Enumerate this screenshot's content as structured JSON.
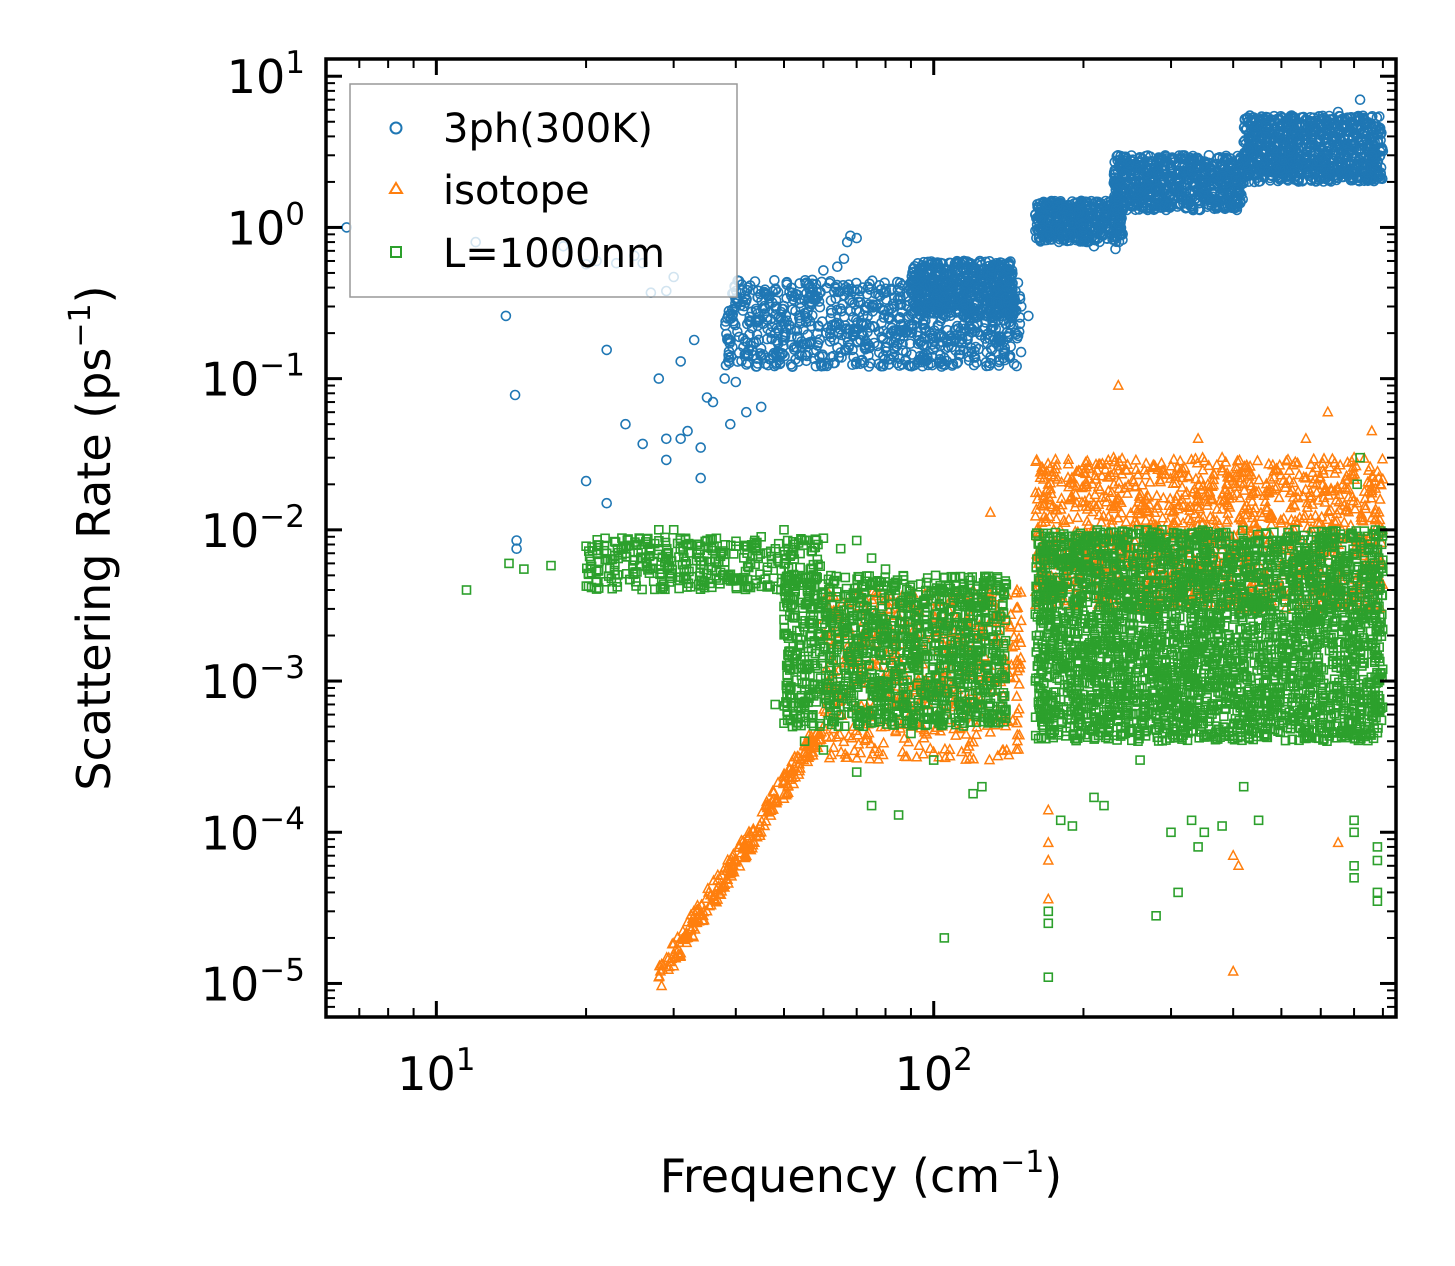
{
  "chart_data": {
    "type": "scatter",
    "xscale": "log",
    "yscale": "log",
    "xlim": [
      6.0,
      850
    ],
    "ylim": [
      6e-06,
      13
    ],
    "xlabel": {
      "base": "Frequency (cm",
      "sup": "−1",
      "close": ")"
    },
    "ylabel": {
      "base": "Scattering Rate (ps",
      "sup": "−1",
      "close": ")"
    },
    "x_ticks": [
      {
        "value": 10,
        "base": "10",
        "exp": "1"
      },
      {
        "value": 100,
        "base": "10",
        "exp": "2"
      }
    ],
    "y_ticks": [
      {
        "value": 10,
        "base": "10",
        "exp": "1"
      },
      {
        "value": 1,
        "base": "10",
        "exp": "0"
      },
      {
        "value": 0.1,
        "base": "10",
        "exp": "−1"
      },
      {
        "value": 0.01,
        "base": "10",
        "exp": "−2"
      },
      {
        "value": 0.001,
        "base": "10",
        "exp": "−3"
      },
      {
        "value": 0.0001,
        "base": "10",
        "exp": "−4"
      },
      {
        "value": 1e-05,
        "base": "10",
        "exp": "−5"
      }
    ],
    "legend_position": "top-left",
    "series": [
      {
        "name": "3ph(300K)",
        "marker": "circle",
        "color": "#1f77b4",
        "points": [
          [
            6.6,
            1.0
          ],
          [
            12,
            0.8
          ],
          [
            13.8,
            0.26
          ],
          [
            14.4,
            0.078
          ],
          [
            14.5,
            0.0085
          ],
          [
            14.5,
            0.0075
          ],
          [
            18,
            0.75
          ],
          [
            20,
            0.57
          ],
          [
            20,
            0.021
          ],
          [
            21,
            0.6
          ],
          [
            22,
            0.015
          ],
          [
            22,
            0.155
          ],
          [
            23,
            0.58
          ],
          [
            24,
            0.05
          ],
          [
            25,
            0.65
          ],
          [
            26,
            0.58
          ],
          [
            26,
            0.037
          ],
          [
            27,
            0.37
          ],
          [
            28,
            0.1
          ],
          [
            29,
            0.38
          ],
          [
            29,
            0.04
          ],
          [
            29,
            0.029
          ],
          [
            30,
            0.47
          ],
          [
            31,
            0.13
          ],
          [
            31,
            0.04
          ],
          [
            32,
            0.045
          ],
          [
            33,
            0.18
          ],
          [
            34,
            0.035
          ],
          [
            34,
            0.022
          ],
          [
            35,
            0.075
          ],
          [
            36,
            0.07
          ],
          [
            38,
            0.1
          ],
          [
            39,
            0.05
          ],
          [
            40,
            0.095
          ],
          [
            42,
            0.33
          ],
          [
            42,
            0.06
          ],
          [
            45,
            0.065
          ],
          [
            48,
            0.2
          ],
          [
            52,
            0.12
          ],
          [
            55,
            0.33
          ],
          [
            57,
            0.45
          ],
          [
            60,
            0.52
          ],
          [
            62,
            0.25
          ],
          [
            64,
            0.55
          ],
          [
            66,
            0.62
          ],
          [
            67,
            0.8
          ],
          [
            68,
            0.88
          ],
          [
            70,
            0.85
          ],
          [
            72,
            0.4
          ],
          [
            75,
            0.3
          ],
          [
            78,
            0.35
          ],
          [
            80,
            0.16
          ],
          [
            82,
            0.2
          ],
          [
            85,
            0.25
          ],
          [
            88,
            0.35
          ],
          [
            92,
            0.45
          ],
          [
            95,
            0.3
          ],
          [
            100,
            0.4
          ],
          [
            105,
            0.5
          ],
          [
            110,
            0.55
          ],
          [
            115,
            0.6
          ],
          [
            120,
            0.5
          ],
          [
            125,
            0.45
          ],
          [
            135,
            0.4
          ],
          [
            140,
            0.27
          ],
          [
            145,
            0.32
          ],
          [
            150,
            0.3
          ],
          [
            155,
            0.26
          ],
          [
            165,
            1.0
          ],
          [
            170,
            1.1
          ],
          [
            180,
            1.2
          ],
          [
            190,
            1.05
          ],
          [
            200,
            1.0
          ],
          [
            210,
            0.75
          ],
          [
            220,
            1.2
          ],
          [
            232,
            0.72
          ],
          [
            240,
            1.3
          ],
          [
            250,
            1.7
          ],
          [
            260,
            2.0
          ],
          [
            270,
            1.6
          ],
          [
            280,
            1.8
          ],
          [
            300,
            2.1
          ],
          [
            320,
            1.9
          ],
          [
            340,
            2.5
          ],
          [
            360,
            2.4
          ],
          [
            380,
            2.2
          ],
          [
            420,
            2.8
          ],
          [
            430,
            2.2
          ],
          [
            460,
            3.3
          ],
          [
            500,
            3.1
          ],
          [
            540,
            3.6
          ],
          [
            600,
            4.2
          ],
          [
            650,
            5.8
          ],
          [
            680,
            3.5
          ],
          [
            720,
            7.0
          ],
          [
            760,
            3.5
          ],
          [
            800,
            3.2
          ]
        ],
        "bands": [
          {
            "x0": 38,
            "x1": 150,
            "ylo": 0.12,
            "yhi": 0.45,
            "n": 900
          },
          {
            "x0": 90,
            "x1": 145,
            "ylo": 0.25,
            "yhi": 0.6,
            "n": 500
          },
          {
            "x0": 160,
            "x1": 240,
            "ylo": 0.8,
            "yhi": 1.5,
            "n": 450
          },
          {
            "x0": 230,
            "x1": 420,
            "ylo": 1.3,
            "yhi": 3.0,
            "n": 700
          },
          {
            "x0": 420,
            "x1": 800,
            "ylo": 2.0,
            "yhi": 5.5,
            "n": 900
          }
        ]
      },
      {
        "name": "isotope",
        "marker": "triangle",
        "color": "#ff7f0e",
        "points": [
          [
            28,
            1.1e-05
          ],
          [
            30,
            1.3e-05
          ],
          [
            32,
            2e-05
          ],
          [
            35,
            3e-05
          ],
          [
            38,
            4.5e-05
          ],
          [
            42,
            7e-05
          ],
          [
            45,
            0.0001
          ],
          [
            48,
            0.00016
          ],
          [
            52,
            0.00025
          ],
          [
            55,
            0.00038
          ],
          [
            60,
            0.0005
          ],
          [
            70,
            0.0012
          ],
          [
            90,
            0.0005
          ],
          [
            100,
            0.0008
          ],
          [
            120,
            0.004
          ],
          [
            130,
            0.013
          ],
          [
            170,
            0.00014
          ],
          [
            170,
            8.5e-05
          ],
          [
            170,
            6.5e-05
          ],
          [
            170,
            3.6e-05
          ],
          [
            230,
            0.03
          ],
          [
            235,
            0.09
          ],
          [
            280,
            0.01
          ],
          [
            340,
            0.04
          ],
          [
            380,
            0.03
          ],
          [
            400,
            7e-05
          ],
          [
            400,
            1.2e-05
          ],
          [
            410,
            6e-05
          ],
          [
            420,
            0.02
          ],
          [
            560,
            0.04
          ],
          [
            620,
            0.06
          ],
          [
            650,
            8.5e-05
          ],
          [
            700,
            0.03
          ],
          [
            760,
            0.045
          ],
          [
            790,
            0.02
          ]
        ],
        "bands": [
          {
            "x0": 28,
            "x1": 60,
            "ylo": 1e-05,
            "yhi": 0.0005,
            "n": 0
          },
          {
            "x0": 60,
            "x1": 150,
            "ylo": 0.0003,
            "yhi": 0.004,
            "n": 500
          },
          {
            "x0": 160,
            "x1": 800,
            "ylo": 0.003,
            "yhi": 0.03,
            "n": 1200
          }
        ]
      },
      {
        "name": "L=1000nm",
        "marker": "square",
        "color": "#2ca02c",
        "points": [
          [
            11.5,
            0.004
          ],
          [
            14,
            0.006
          ],
          [
            15,
            0.0055
          ],
          [
            17,
            0.0058
          ],
          [
            20,
            0.0078
          ],
          [
            21,
            0.0045
          ],
          [
            22,
            0.007
          ],
          [
            24,
            0.0075
          ],
          [
            26,
            0.0065
          ],
          [
            28,
            0.01
          ],
          [
            30,
            0.01
          ],
          [
            35,
            0.0085
          ],
          [
            40,
            0.0078
          ],
          [
            45,
            0.009
          ],
          [
            50,
            0.01
          ],
          [
            55,
            0.0085
          ],
          [
            60,
            0.0088
          ],
          [
            65,
            0.0075
          ],
          [
            70,
            0.0085
          ],
          [
            75,
            0.0065
          ],
          [
            80,
            0.0055
          ],
          [
            48,
            0.0007
          ],
          [
            52,
            0.0005
          ],
          [
            55,
            0.0004
          ],
          [
            60,
            0.00035
          ],
          [
            70,
            0.00025
          ],
          [
            75,
            0.00015
          ],
          [
            85,
            0.00013
          ],
          [
            90,
            0.00045
          ],
          [
            100,
            0.0003
          ],
          [
            105,
            2e-05
          ],
          [
            120,
            0.00018
          ],
          [
            125,
            0.0002
          ],
          [
            170,
            1.1e-05
          ],
          [
            170,
            2.5e-05
          ],
          [
            170,
            3e-05
          ],
          [
            180,
            0.00012
          ],
          [
            190,
            0.00011
          ],
          [
            210,
            0.00017
          ],
          [
            220,
            0.00015
          ],
          [
            260,
            0.0003
          ],
          [
            280,
            2.8e-05
          ],
          [
            300,
            0.0001
          ],
          [
            310,
            4e-05
          ],
          [
            330,
            0.00012
          ],
          [
            340,
            8e-05
          ],
          [
            350,
            0.0001
          ],
          [
            380,
            0.00011
          ],
          [
            420,
            0.0002
          ],
          [
            450,
            0.00012
          ],
          [
            700,
            0.00012
          ],
          [
            700,
            0.0001
          ],
          [
            700,
            6e-05
          ],
          [
            700,
            5e-05
          ],
          [
            780,
            8e-05
          ],
          [
            780,
            6.5e-05
          ],
          [
            780,
            4e-05
          ],
          [
            780,
            3.5e-05
          ],
          [
            720,
            0.03
          ],
          [
            710,
            0.02
          ]
        ],
        "bands": [
          {
            "x0": 20,
            "x1": 60,
            "ylo": 0.004,
            "yhi": 0.009,
            "n": 350
          },
          {
            "x0": 50,
            "x1": 140,
            "ylo": 0.0005,
            "yhi": 0.005,
            "n": 1200
          },
          {
            "x0": 160,
            "x1": 800,
            "ylo": 0.0004,
            "yhi": 0.01,
            "n": 3200
          }
        ]
      }
    ]
  }
}
